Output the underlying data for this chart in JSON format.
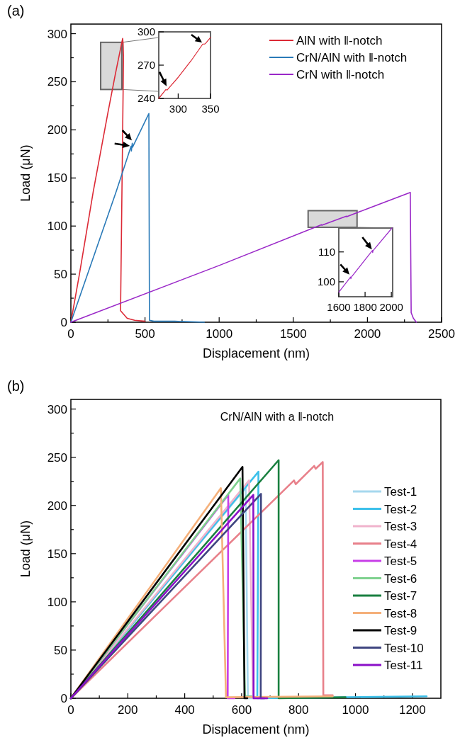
{
  "chart_data": [
    {
      "type": "line",
      "title": "(a)",
      "xlabel": "Displacement (nm)",
      "ylabel": "Load (μN)",
      "xlim": [
        0,
        2500
      ],
      "ylim": [
        0,
        310
      ],
      "xticks": [
        0,
        {
          "value": 250,
          "label": null
        },
        500,
        {
          "value": 750,
          "label": null
        },
        1000,
        {
          "value": 1250,
          "label": null
        },
        1500,
        {
          "value": 1750,
          "label": null
        },
        2000,
        {
          "value": 2250,
          "label": null
        },
        2500
      ],
      "yticks": [
        0,
        {
          "value": 25,
          "label": null
        },
        50,
        {
          "value": 75,
          "label": null
        },
        100,
        {
          "value": 125,
          "label": null
        },
        150,
        {
          "value": 175,
          "label": null
        },
        200,
        {
          "value": 225,
          "label": null
        },
        250,
        {
          "value": 275,
          "label": null
        },
        300
      ],
      "legend": "top right",
      "grid": false,
      "marker": "none",
      "line_style": "solid",
      "series": [
        {
          "name": "AlN with ‖-notch",
          "color": "#dc2a36",
          "x": [
            0,
            60,
            151,
            250,
            300,
            349,
            352,
            355,
            335,
            380,
            430,
            500
          ],
          "values": [
            0,
            52,
            136,
            218,
            258,
            295,
            290,
            276,
            12,
            4,
            2,
            1
          ]
        },
        {
          "name": "CrN/AlN with ‖-notch",
          "color": "#2a7ab8",
          "x": [
            0,
            306,
            406,
            408,
            414,
            416,
            526,
            530,
            560,
            700,
            900
          ],
          "values": [
            0,
            136,
            183,
            178,
            186,
            182,
            217,
            2,
            1,
            1,
            0
          ]
        },
        {
          "name": "CrN with ‖-notch",
          "color": "#9a28c8",
          "x": [
            0,
            1000,
            1691,
            1693,
            1858,
            1860,
            2000,
            2289,
            2295,
            2310,
            2330
          ],
          "values": [
            0,
            59,
            101.4,
            100.8,
            110.3,
            109.7,
            118,
            135,
            10,
            4,
            0
          ]
        }
      ]
    },
    {
      "type": "line",
      "xlim": [
        270,
        350
      ],
      "ylim": [
        240,
        300
      ],
      "xticks": [
        300,
        350
      ],
      "yticks": [
        240,
        270,
        300
      ],
      "marker": "none",
      "line_style": "solid",
      "series": [
        {
          "color": "#dc2a36",
          "x": [
            270,
            281,
            283,
            285,
            300,
            320,
            338,
            341,
            343,
            350
          ],
          "values": [
            240,
            248,
            247.5,
            249,
            259,
            274,
            289,
            289,
            290,
            295
          ]
        }
      ]
    },
    {
      "type": "line",
      "xlim": [
        1600,
        2010
      ],
      "ylim": [
        95,
        118
      ],
      "xticks": [
        1600,
        1800,
        2000
      ],
      "yticks": [
        100,
        110
      ],
      "marker": "none",
      "line_style": "solid",
      "series": [
        {
          "color": "#9a28c8",
          "x": [
            1600,
            1690,
            1692,
            1694,
            1856,
            1858,
            1860,
            2005
          ],
          "values": [
            96.5,
            101.6,
            101,
            101.5,
            110.5,
            109.8,
            110.4,
            118
          ]
        }
      ]
    },
    {
      "type": "line",
      "title": "(b)",
      "subtitle": "CrN/AlN with a ‖-notch",
      "xlabel": "Displacement (nm)",
      "ylabel": "Load (μN)",
      "xlim": [
        0,
        1300
      ],
      "ylim": [
        0,
        310
      ],
      "xticks": [
        0,
        {
          "value": 100,
          "label": null
        },
        200,
        {
          "value": 300,
          "label": null
        },
        400,
        {
          "value": 500,
          "label": null
        },
        600,
        {
          "value": 700,
          "label": null
        },
        800,
        {
          "value": 900,
          "label": null
        },
        1000,
        {
          "value": 1100,
          "label": null
        },
        1200
      ],
      "yticks": [
        0,
        {
          "value": 25,
          "label": null
        },
        50,
        {
          "value": 75,
          "label": null
        },
        100,
        {
          "value": 125,
          "label": null
        },
        150,
        {
          "value": 175,
          "label": null
        },
        200,
        {
          "value": 225,
          "label": null
        },
        250,
        {
          "value": 275,
          "label": null
        },
        300
      ],
      "legend": "right",
      "grid": false,
      "marker": "none",
      "line_style": "solid",
      "series": [
        {
          "name": "Test-1",
          "color": "#a6d8ee",
          "x": [
            0,
            614,
            622,
            640
          ],
          "values": [
            0,
            218,
            0,
            0
          ]
        },
        {
          "name": "Test-2",
          "color": "#3cc0ea",
          "x": [
            0,
            659,
            655,
            1250
          ],
          "values": [
            0,
            235,
            0,
            2
          ]
        },
        {
          "name": "Test-3",
          "color": "#f0b3cc",
          "x": [
            0,
            626,
            640,
            660
          ],
          "values": [
            0,
            226,
            0,
            0
          ]
        },
        {
          "name": "Test-4",
          "color": "#e8808a",
          "x": [
            0,
            784,
            790,
            855,
            860,
            885,
            887,
            920
          ],
          "values": [
            0,
            226,
            222,
            241,
            238,
            245,
            3,
            3
          ]
        },
        {
          "name": "Test-5",
          "color": "#c83ee8",
          "x": [
            0,
            553,
            551,
            575
          ],
          "values": [
            0,
            211,
            0,
            0
          ]
        },
        {
          "name": "Test-6",
          "color": "#7fd18f",
          "x": [
            0,
            595,
            612,
            635
          ],
          "values": [
            0,
            228,
            2,
            2
          ]
        },
        {
          "name": "Test-7",
          "color": "#1a8040",
          "x": [
            0,
            730,
            730,
            965
          ],
          "values": [
            0,
            247,
            0,
            1
          ]
        },
        {
          "name": "Test-8",
          "color": "#f5b07a",
          "x": [
            0,
            527,
            545,
            920
          ],
          "values": [
            0,
            218,
            1,
            2
          ]
        },
        {
          "name": "Test-9",
          "color": "#000000",
          "x": [
            0,
            603,
            610,
            620
          ],
          "values": [
            0,
            240,
            0,
            0
          ]
        },
        {
          "name": "Test-10",
          "color": "#3f4580",
          "x": [
            0,
            668,
            667,
            680
          ],
          "values": [
            0,
            212,
            0,
            0
          ]
        },
        {
          "name": "Test-11",
          "color": "#8a10c8",
          "x": [
            0,
            641,
            642,
            690
          ],
          "values": [
            0,
            211,
            0,
            0
          ]
        }
      ]
    }
  ]
}
